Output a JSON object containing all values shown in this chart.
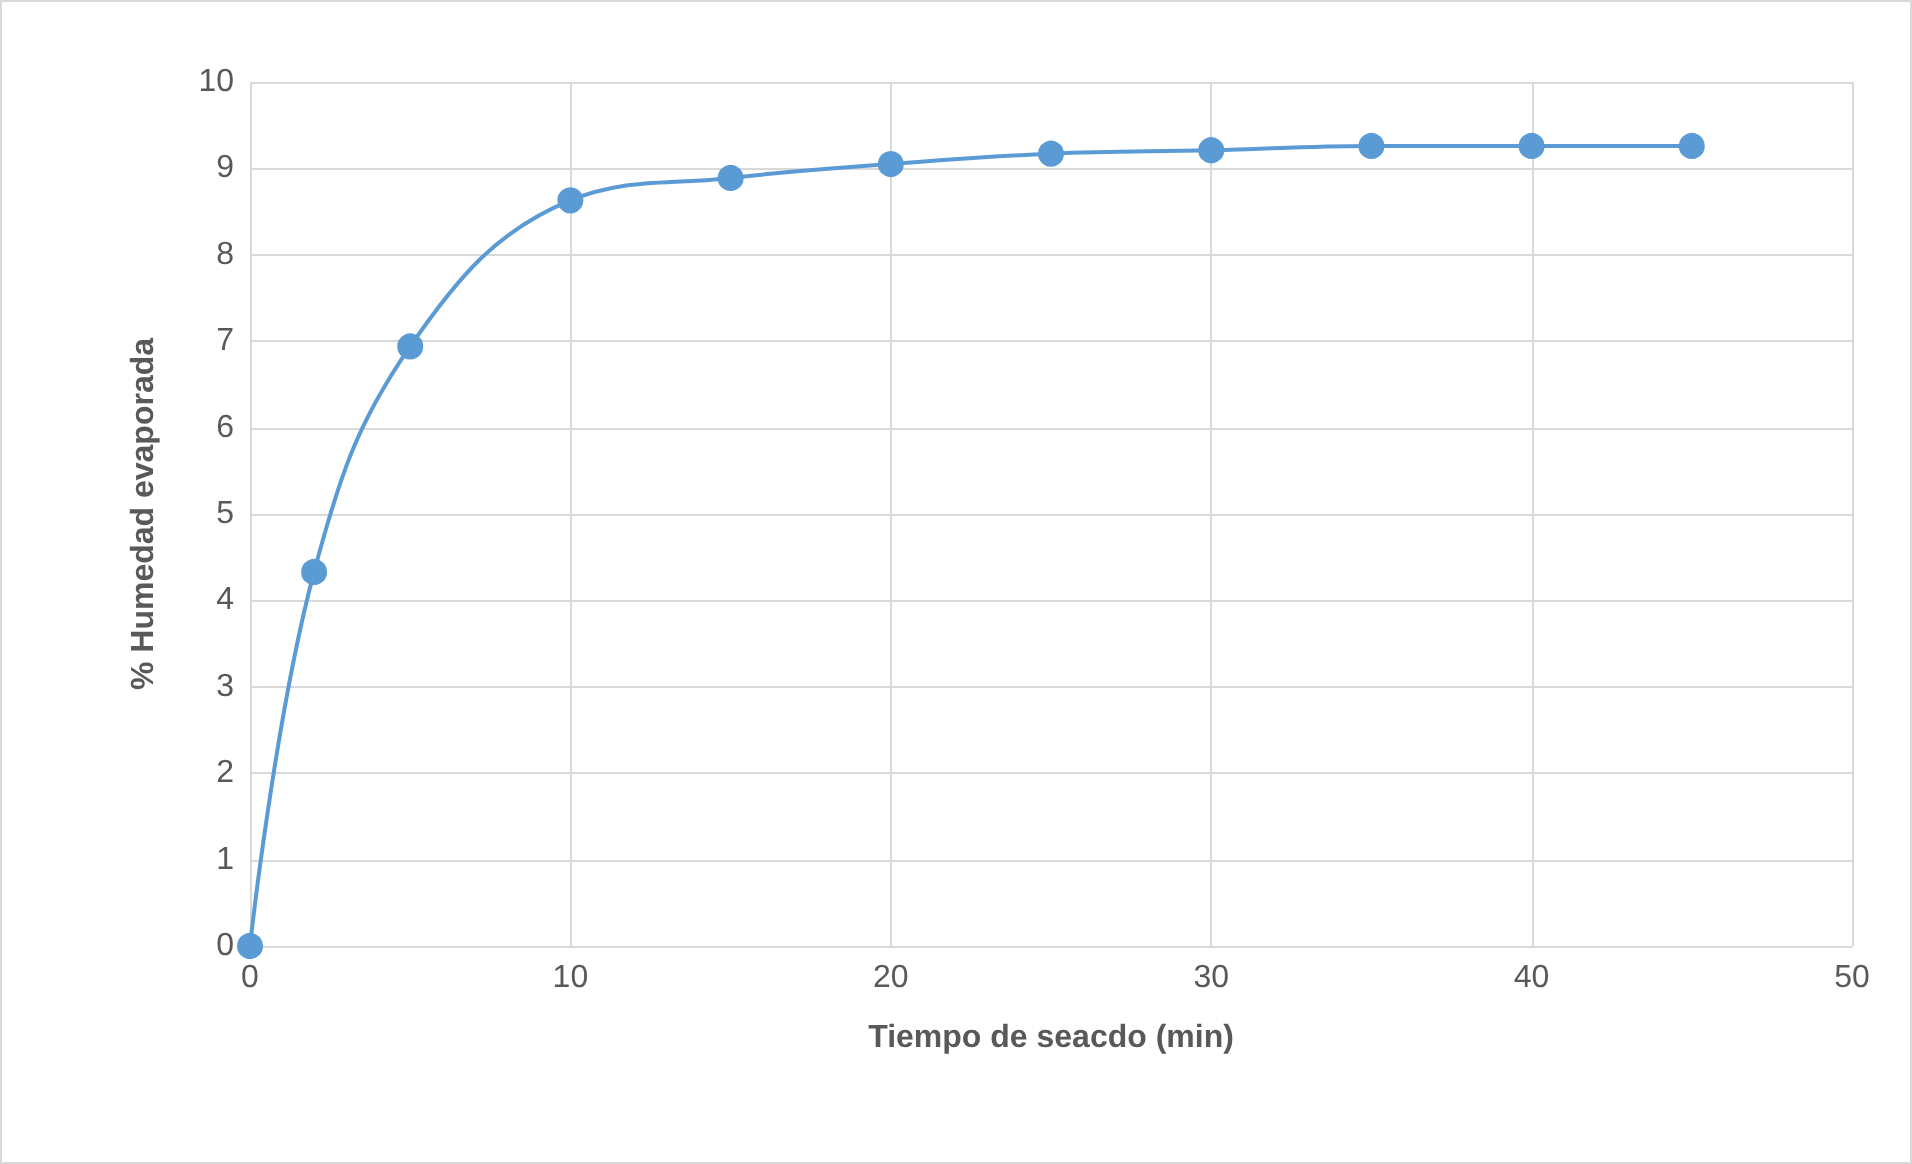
{
  "chart_data": {
    "type": "line",
    "xlabel": "Tiempo de seacdo (min)",
    "ylabel": "% Humedad evaporada",
    "x": [
      0,
      2,
      5,
      10,
      15,
      20,
      25,
      30,
      35,
      40,
      45
    ],
    "series": [
      {
        "color": "#5b9bd5",
        "values": [
          0,
          4.33,
          6.94,
          8.63,
          8.89,
          9.05,
          9.17,
          9.21,
          9.26,
          9.26,
          9.26
        ]
      }
    ],
    "xlim": [
      0,
      50
    ],
    "xticks": [
      0,
      10,
      20,
      30,
      40,
      50
    ],
    "ylim": [
      0,
      10
    ],
    "yticks": [
      0,
      1,
      2,
      3,
      4,
      5,
      6,
      7,
      8,
      9,
      10
    ],
    "grid": true,
    "marker": "circle",
    "line_style": "solid"
  }
}
